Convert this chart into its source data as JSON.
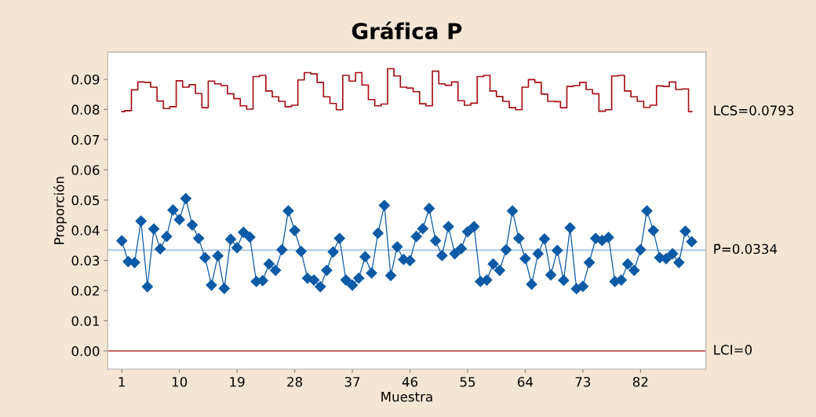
{
  "chart_data": {
    "type": "line",
    "title": "Gráfica P",
    "xlabel": "Muestra",
    "ylabel": "Proporción",
    "x": [
      1,
      2,
      3,
      4,
      5,
      6,
      7,
      8,
      9,
      10,
      11,
      12,
      13,
      14,
      15,
      16,
      17,
      18,
      19,
      20,
      21,
      22,
      23,
      24,
      25,
      26,
      27,
      28,
      29,
      30,
      31,
      32,
      33,
      34,
      35,
      36,
      37,
      38,
      39,
      40,
      41,
      42,
      43,
      44,
      45,
      46,
      47,
      48,
      49,
      50,
      51,
      52,
      53,
      54,
      55,
      56,
      57,
      58,
      59,
      60,
      61,
      62,
      63,
      64,
      65,
      66,
      67,
      68,
      69,
      70,
      71,
      72,
      73,
      74,
      75,
      76,
      77,
      78,
      79,
      80,
      81,
      82,
      83,
      84,
      85,
      86,
      87,
      88,
      89,
      90
    ],
    "series": [
      {
        "type": "line",
        "color": "#0b5aa6",
        "marker": "diamond",
        "values": [
          0.0365,
          0.0296,
          0.0293,
          0.043,
          0.0213,
          0.0404,
          0.0338,
          0.0379,
          0.0467,
          0.0435,
          0.0505,
          0.0417,
          0.0373,
          0.0309,
          0.0218,
          0.0315,
          0.0207,
          0.037,
          0.0342,
          0.0393,
          0.0377,
          0.023,
          0.0233,
          0.0288,
          0.0267,
          0.0335,
          0.0464,
          0.0399,
          0.033,
          0.0241,
          0.0235,
          0.0213,
          0.0267,
          0.0328,
          0.0373,
          0.0235,
          0.0218,
          0.0241,
          0.0312,
          0.0258,
          0.039,
          0.0482,
          0.025,
          0.0345,
          0.0303,
          0.0299,
          0.0379,
          0.0405,
          0.0472,
          0.0365,
          0.0316,
          0.0412,
          0.0322,
          0.0339,
          0.0395,
          0.0412,
          0.023,
          0.0235,
          0.0288,
          0.0267,
          0.0335,
          0.0464,
          0.0373,
          0.0306,
          0.0221,
          0.0322,
          0.0371,
          0.0252,
          0.0333,
          0.0234,
          0.0408,
          0.0206,
          0.0214,
          0.0293,
          0.0373,
          0.0366,
          0.0376,
          0.023,
          0.0235,
          0.0288,
          0.0267,
          0.0335,
          0.0464,
          0.0399,
          0.0309,
          0.0306,
          0.0322,
          0.0293,
          0.0397,
          0.0362
        ]
      },
      {
        "type": "step",
        "name": "LCS=0.0793",
        "color": "#a50f15",
        "marker": "none",
        "values": [
          0.0793,
          0.0796,
          0.0865,
          0.0891,
          0.089,
          0.0874,
          0.0828,
          0.0803,
          0.0809,
          0.0895,
          0.0874,
          0.0882,
          0.0853,
          0.0806,
          0.0894,
          0.0885,
          0.0879,
          0.0852,
          0.0836,
          0.0812,
          0.0801,
          0.0909,
          0.0913,
          0.0861,
          0.0842,
          0.0827,
          0.0809,
          0.0814,
          0.0898,
          0.0922,
          0.0918,
          0.089,
          0.0842,
          0.082,
          0.0799,
          0.0913,
          0.0894,
          0.0922,
          0.0881,
          0.0833,
          0.0812,
          0.0818,
          0.0935,
          0.0911,
          0.0874,
          0.0871,
          0.0859,
          0.0819,
          0.0812,
          0.0927,
          0.0885,
          0.088,
          0.0891,
          0.0829,
          0.0814,
          0.0821,
          0.0909,
          0.0913,
          0.0861,
          0.0843,
          0.0827,
          0.0806,
          0.0799,
          0.0874,
          0.0899,
          0.089,
          0.0851,
          0.0827,
          0.0826,
          0.0806,
          0.0876,
          0.0879,
          0.089,
          0.0866,
          0.0852,
          0.0794,
          0.0799,
          0.0911,
          0.0913,
          0.0861,
          0.0842,
          0.0827,
          0.0807,
          0.0814,
          0.0878,
          0.0876,
          0.0891,
          0.0866,
          0.0868,
          0.0793
        ]
      }
    ],
    "ref_lines": [
      {
        "axis": "y",
        "value": 0.0334,
        "label": "P̄=0.0334",
        "color": "#8fb8e0"
      },
      {
        "axis": "y",
        "value": 0,
        "label": "LCI=0",
        "color": "#c0504d"
      }
    ],
    "xlim": [
      -1.2,
      92.2
    ],
    "xticks": [
      1,
      10,
      19,
      28,
      37,
      46,
      55,
      64,
      73,
      82
    ],
    "ylim": [
      -0.006,
      0.099
    ],
    "yticks": [
      {
        "value": 0,
        "label": "0.00"
      },
      {
        "value": 0.01,
        "label": "0.01"
      },
      {
        "value": 0.02,
        "label": "0.02"
      },
      {
        "value": 0.03,
        "label": "0.03"
      },
      {
        "value": 0.04,
        "label": "0.04"
      },
      {
        "value": 0.05,
        "label": "0.05"
      },
      {
        "value": 0.06,
        "label": "0.06"
      },
      {
        "value": 0.07,
        "label": "0.07"
      },
      {
        "value": 0.08,
        "label": "0.08"
      },
      {
        "value": 0.09,
        "label": "0.09"
      }
    ],
    "grid": false,
    "legend": false
  }
}
